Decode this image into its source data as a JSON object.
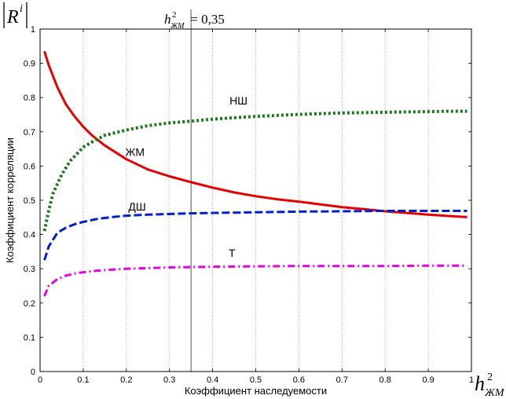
{
  "chart_data": {
    "type": "line",
    "xlabel": "Коэффициент наследуемости",
    "ylabel": "Коэффициент корреляции",
    "xlim": [
      0,
      1
    ],
    "ylim": [
      0,
      1
    ],
    "xticks": [
      "0",
      "0.1",
      "0.2",
      "0.3",
      "0.4",
      "0.5",
      "0.6",
      "0.7",
      "0.8",
      "0.9",
      "1"
    ],
    "yticks": [
      "0",
      "0.1",
      "0.2",
      "0.3",
      "0.4",
      "0.5",
      "0.6",
      "0.7",
      "0.8",
      "0.9",
      "1"
    ],
    "grid": "vertical dotted",
    "y_axis_title": {
      "base": "R",
      "sup": "i"
    },
    "x_axis_title": {
      "base": "h",
      "sup": "2",
      "sub": "ЖМ"
    },
    "reference_line": {
      "x": 0.35,
      "label_base": "h",
      "label_sup": "2",
      "label_sub": "ЖМ",
      "label_value": " = 0,35"
    },
    "series": [
      {
        "name": "ЖМ",
        "color": "#e60000",
        "style": "solid",
        "x": [
          0.01,
          0.02,
          0.04,
          0.06,
          0.08,
          0.1,
          0.12,
          0.15,
          0.2,
          0.25,
          0.3,
          0.35,
          0.4,
          0.45,
          0.5,
          0.55,
          0.6,
          0.65,
          0.7,
          0.75,
          0.8,
          0.85,
          0.9,
          0.95,
          0.99
        ],
        "y": [
          0.935,
          0.895,
          0.83,
          0.78,
          0.745,
          0.715,
          0.69,
          0.66,
          0.62,
          0.59,
          0.57,
          0.553,
          0.537,
          0.523,
          0.512,
          0.503,
          0.496,
          0.488,
          0.48,
          0.474,
          0.468,
          0.463,
          0.458,
          0.454,
          0.451
        ]
      },
      {
        "name": "НШ",
        "color": "#1a7a1a",
        "style": "dotted",
        "x": [
          0.01,
          0.02,
          0.03,
          0.05,
          0.07,
          0.1,
          0.12,
          0.15,
          0.2,
          0.25,
          0.3,
          0.35,
          0.4,
          0.45,
          0.5,
          0.55,
          0.6,
          0.65,
          0.7,
          0.75,
          0.8,
          0.85,
          0.9,
          0.95,
          0.99
        ],
        "y": [
          0.41,
          0.47,
          0.52,
          0.575,
          0.615,
          0.655,
          0.67,
          0.69,
          0.705,
          0.718,
          0.726,
          0.731,
          0.737,
          0.741,
          0.745,
          0.748,
          0.751,
          0.753,
          0.755,
          0.756,
          0.757,
          0.758,
          0.759,
          0.76,
          0.76
        ]
      },
      {
        "name": "ДШ",
        "color": "#0020d0",
        "style": "dashed",
        "x": [
          0.01,
          0.02,
          0.04,
          0.06,
          0.08,
          0.1,
          0.13,
          0.16,
          0.2,
          0.25,
          0.3,
          0.35,
          0.4,
          0.5,
          0.6,
          0.7,
          0.8,
          0.9,
          0.99
        ],
        "y": [
          0.325,
          0.365,
          0.405,
          0.42,
          0.43,
          0.437,
          0.445,
          0.45,
          0.455,
          0.458,
          0.46,
          0.462,
          0.463,
          0.465,
          0.467,
          0.468,
          0.469,
          0.469,
          0.469
        ]
      },
      {
        "name": "Т",
        "color": "#e600e6",
        "style": "dashdot",
        "x": [
          0.01,
          0.02,
          0.04,
          0.06,
          0.08,
          0.1,
          0.13,
          0.16,
          0.2,
          0.3,
          0.4,
          0.5,
          0.6,
          0.7,
          0.8,
          0.9,
          0.99
        ],
        "y": [
          0.22,
          0.25,
          0.27,
          0.28,
          0.286,
          0.29,
          0.294,
          0.297,
          0.3,
          0.304,
          0.306,
          0.307,
          0.308,
          0.308,
          0.308,
          0.309,
          0.309
        ]
      }
    ],
    "series_labels": [
      {
        "text": "НШ",
        "x": 0.46,
        "y": 0.78
      },
      {
        "text": "ЖМ",
        "x": 0.22,
        "y": 0.63
      },
      {
        "text": "ДШ",
        "x": 0.225,
        "y": 0.47
      },
      {
        "text": "Т",
        "x": 0.445,
        "y": 0.335
      }
    ]
  }
}
